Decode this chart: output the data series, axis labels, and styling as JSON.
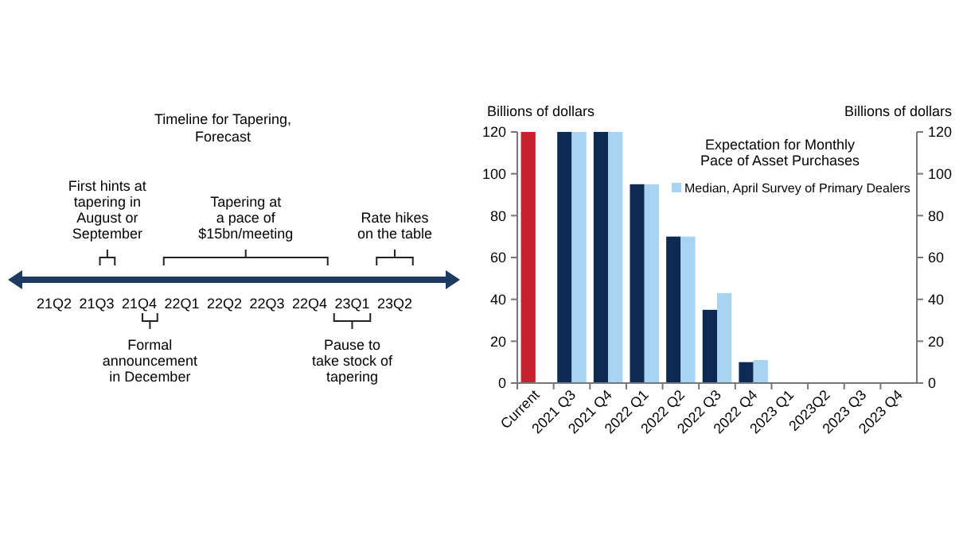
{
  "chart_data": [
    {
      "type": "other",
      "title": "Timeline for Tapering,\nForecast",
      "categories": [
        "21Q2",
        "21Q3",
        "21Q4",
        "22Q1",
        "22Q2",
        "22Q3",
        "22Q4",
        "23Q1",
        "23Q2"
      ],
      "color": "#1f3a5f",
      "annotations": [
        "First hints at\ntapering in\nAugust or\nSeptember",
        "Formal\nannouncement\nin December",
        "Tapering at\na pace of\n$15bn/meeting",
        "Pause to\ntake stock of\ntapering",
        "Rate hikes\non the table"
      ]
    },
    {
      "type": "bar",
      "title": "Expectation for Monthly\nPace of Asset Purchases",
      "ylabel": "Billions of dollars",
      "y2label": "Billions of dollars",
      "categories": [
        "Current",
        "2021 Q3",
        "2021 Q4",
        "2022 Q1",
        "2022 Q2",
        "2022 Q3",
        "2022 Q4",
        "2023 Q1",
        "2023Q2",
        "2023 Q3",
        "2023 Q4"
      ],
      "series": [
        {
          "colors": [
            "#c8202f",
            "#0d2b52",
            "#0d2b52",
            "#0d2b52",
            "#0d2b52",
            "#0d2b52",
            "#0d2b52",
            "#0d2b52",
            "#0d2b52",
            "#0d2b52",
            "#0d2b52"
          ],
          "values": [
            120,
            120,
            120,
            95,
            70,
            35,
            10,
            0,
            0,
            0,
            0
          ]
        },
        {
          "name": "Median, April Survey of Primary Dealers",
          "color": "#a8d4f2",
          "values": [
            null,
            120,
            120,
            95,
            70,
            43,
            11,
            0,
            0,
            0,
            0
          ]
        }
      ],
      "ylim": [
        0,
        120
      ],
      "yticks": [
        0,
        20,
        40,
        60,
        80,
        100,
        120
      ],
      "y2lim": [
        0,
        120
      ],
      "y2ticks": [
        0,
        20,
        40,
        60,
        80,
        100,
        120
      ],
      "legend": "top right",
      "grid": false
    }
  ]
}
